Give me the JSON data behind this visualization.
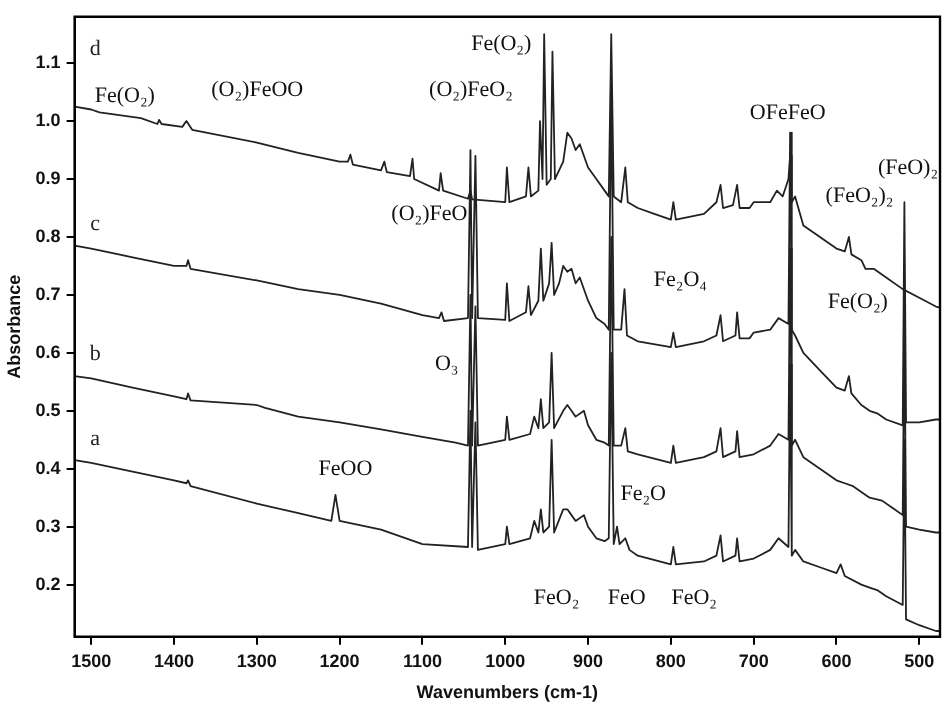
{
  "chart_data": {
    "type": "line",
    "xlabel": "Wavenumbers (cm-1)",
    "ylabel": "Absorbance",
    "xlim": [
      1520,
      475
    ],
    "ylim": [
      0.11,
      1.18
    ],
    "xticks": [
      1500,
      1400,
      1300,
      1200,
      1100,
      1000,
      900,
      800,
      700,
      600,
      500
    ],
    "yticks": [
      0.2,
      0.3,
      0.4,
      0.5,
      0.6,
      0.7,
      0.8,
      0.9,
      {
        "value": 1,
        "label": "1.0"
      },
      1.1
    ],
    "grid": false,
    "legend": false,
    "marker": "none",
    "line_style": "solid",
    "series": [
      {
        "name": "a",
        "color": "#222222",
        "x": [
          1520,
          1500,
          1450,
          1400,
          1385,
          1383,
          1380,
          1300,
          1255,
          1210,
          1205,
          1200,
          1150,
          1100,
          1045,
          1042,
          1040,
          1036,
          1033,
          1000,
          998,
          995,
          970,
          965,
          960,
          957,
          954,
          947,
          944,
          941,
          930,
          925,
          920,
          915,
          905,
          900,
          890,
          880,
          875,
          872,
          869,
          865,
          862,
          855,
          850,
          840,
          800,
          797,
          794,
          760,
          745,
          740,
          737,
          722,
          720,
          717,
          700,
          680,
          670,
          658,
          656,
          654,
          650,
          640,
          620,
          600,
          595,
          590,
          570,
          560,
          550,
          540,
          520,
          518,
          516,
          500,
          480,
          475
        ],
        "values": [
          0.415,
          0.41,
          0.395,
          0.38,
          0.375,
          0.38,
          0.37,
          0.34,
          0.325,
          0.31,
          0.355,
          0.31,
          0.295,
          0.27,
          0.265,
          0.5,
          0.265,
          0.48,
          0.26,
          0.27,
          0.3,
          0.27,
          0.28,
          0.31,
          0.29,
          0.33,
          0.29,
          0.3,
          0.45,
          0.29,
          0.33,
          0.33,
          0.32,
          0.31,
          0.32,
          0.3,
          0.28,
          0.275,
          0.28,
          0.6,
          0.27,
          0.3,
          0.27,
          0.28,
          0.26,
          0.25,
          0.235,
          0.265,
          0.235,
          0.24,
          0.25,
          0.285,
          0.24,
          0.25,
          0.28,
          0.24,
          0.245,
          0.26,
          0.28,
          0.265,
          0.58,
          0.25,
          0.26,
          0.24,
          0.23,
          0.22,
          0.235,
          0.215,
          0.2,
          0.195,
          0.19,
          0.18,
          0.165,
          0.45,
          0.14,
          0.13,
          0.12,
          0.12
        ]
      },
      {
        "name": "b",
        "color": "#222222",
        "x": [
          1520,
          1500,
          1450,
          1400,
          1385,
          1383,
          1380,
          1300,
          1290,
          1250,
          1200,
          1150,
          1100,
          1060,
          1045,
          1042,
          1040,
          1036,
          1033,
          1000,
          998,
          995,
          970,
          965,
          960,
          957,
          954,
          947,
          944,
          941,
          930,
          925,
          920,
          915,
          905,
          900,
          890,
          880,
          875,
          872,
          869,
          860,
          855,
          852,
          840,
          800,
          797,
          794,
          760,
          745,
          740,
          737,
          722,
          720,
          717,
          700,
          680,
          670,
          658,
          656,
          654,
          650,
          640,
          620,
          600,
          590,
          580,
          570,
          560,
          545,
          530,
          520,
          518,
          516,
          500,
          480,
          475
        ],
        "values": [
          0.56,
          0.556,
          0.54,
          0.525,
          0.52,
          0.53,
          0.518,
          0.51,
          0.505,
          0.49,
          0.48,
          0.468,
          0.455,
          0.445,
          0.44,
          0.7,
          0.44,
          0.68,
          0.44,
          0.45,
          0.49,
          0.45,
          0.46,
          0.49,
          0.47,
          0.52,
          0.47,
          0.48,
          0.6,
          0.47,
          0.5,
          0.51,
          0.5,
          0.49,
          0.5,
          0.475,
          0.45,
          0.445,
          0.44,
          0.8,
          0.44,
          0.44,
          0.47,
          0.43,
          0.425,
          0.41,
          0.44,
          0.41,
          0.42,
          0.43,
          0.47,
          0.42,
          0.43,
          0.465,
          0.42,
          0.425,
          0.44,
          0.46,
          0.45,
          0.78,
          0.44,
          0.45,
          0.42,
          0.4,
          0.38,
          0.375,
          0.37,
          0.36,
          0.35,
          0.345,
          0.33,
          0.32,
          0.66,
          0.3,
          0.295,
          0.29,
          0.29
        ]
      },
      {
        "name": "c",
        "color": "#222222",
        "x": [
          1520,
          1500,
          1450,
          1400,
          1385,
          1383,
          1380,
          1300,
          1250,
          1200,
          1150,
          1100,
          1080,
          1077,
          1074,
          1045,
          1042,
          1040,
          1036,
          1033,
          1000,
          998,
          995,
          975,
          972,
          969,
          960,
          957,
          954,
          947,
          944,
          941,
          935,
          930,
          925,
          920,
          915,
          910,
          900,
          890,
          880,
          875,
          872,
          869,
          860,
          856,
          853,
          840,
          800,
          797,
          794,
          760,
          745,
          740,
          737,
          722,
          720,
          717,
          705,
          700,
          680,
          670,
          658,
          656,
          654,
          650,
          640,
          620,
          600,
          590,
          585,
          582,
          570,
          560,
          550,
          540,
          520,
          518,
          516,
          500,
          480,
          475
        ],
        "values": [
          0.785,
          0.78,
          0.765,
          0.75,
          0.75,
          0.76,
          0.745,
          0.725,
          0.71,
          0.7,
          0.685,
          0.665,
          0.66,
          0.67,
          0.655,
          0.66,
          0.95,
          0.66,
          0.94,
          0.66,
          0.657,
          0.72,
          0.655,
          0.67,
          0.715,
          0.665,
          0.69,
          0.78,
          0.69,
          0.72,
          0.79,
          0.7,
          0.72,
          0.75,
          0.74,
          0.745,
          0.72,
          0.73,
          0.69,
          0.66,
          0.65,
          0.64,
          1.05,
          0.64,
          0.64,
          0.71,
          0.63,
          0.62,
          0.61,
          0.635,
          0.61,
          0.62,
          0.63,
          0.665,
          0.62,
          0.63,
          0.67,
          0.625,
          0.625,
          0.635,
          0.64,
          0.66,
          0.65,
          0.98,
          0.64,
          0.63,
          0.6,
          0.57,
          0.54,
          0.535,
          0.56,
          0.53,
          0.51,
          0.5,
          0.495,
          0.485,
          0.475,
          0.86,
          0.48,
          0.48,
          0.485,
          0.485
        ]
      },
      {
        "name": "d",
        "color": "#222222",
        "x": [
          1520,
          1500,
          1490,
          1440,
          1420,
          1418,
          1415,
          1390,
          1385,
          1378,
          1300,
          1250,
          1200,
          1190,
          1187,
          1184,
          1150,
          1146,
          1143,
          1115,
          1112,
          1110,
          1080,
          1078,
          1075,
          1045,
          1042,
          1040,
          1000,
          998,
          995,
          975,
          972,
          969,
          960,
          958,
          955,
          953,
          950,
          945,
          943,
          940,
          930,
          925,
          920,
          915,
          910,
          900,
          890,
          880,
          875,
          872,
          869,
          860,
          855,
          852,
          840,
          820,
          800,
          797,
          794,
          760,
          745,
          740,
          737,
          725,
          720,
          717,
          705,
          700,
          680,
          672,
          665,
          658,
          656,
          654,
          650,
          640,
          620,
          600,
          590,
          585,
          582,
          570,
          565,
          555,
          540,
          520,
          500,
          480,
          475
        ],
        "values": [
          1.025,
          1.02,
          1.015,
          1.005,
          0.995,
          1.002,
          0.995,
          0.99,
          1.0,
          0.985,
          0.963,
          0.945,
          0.93,
          0.93,
          0.942,
          0.925,
          0.915,
          0.93,
          0.912,
          0.905,
          0.935,
          0.9,
          0.88,
          0.91,
          0.88,
          0.866,
          0.88,
          0.865,
          0.86,
          0.92,
          0.86,
          0.87,
          0.92,
          0.87,
          0.88,
          1.0,
          0.9,
          1.15,
          0.89,
          0.9,
          1.12,
          0.9,
          0.93,
          0.98,
          0.97,
          0.95,
          0.96,
          0.92,
          0.9,
          0.88,
          0.87,
          1.15,
          0.87,
          0.86,
          0.92,
          0.86,
          0.85,
          0.84,
          0.83,
          0.86,
          0.83,
          0.84,
          0.86,
          0.89,
          0.85,
          0.855,
          0.89,
          0.85,
          0.85,
          0.86,
          0.86,
          0.88,
          0.87,
          0.9,
          0.94,
          0.86,
          0.87,
          0.82,
          0.8,
          0.78,
          0.775,
          0.8,
          0.77,
          0.76,
          0.745,
          0.745,
          0.73,
          0.71,
          0.695,
          0.68,
          0.678
        ]
      }
    ],
    "annotations": [
      "Fe(O₂)",
      "(O₂)FeOO",
      "(O₂)FeO₂",
      "Fe(O₂)",
      "(O₂)FeO",
      "O₃",
      "FeOO",
      "Fe₂O₄",
      "OFeFeO",
      "(FeO₂)₂",
      "(FeO)₂",
      "Fe(O₂)",
      "FeO₂",
      "FeO",
      "FeO₂",
      "Fe₂O"
    ]
  }
}
